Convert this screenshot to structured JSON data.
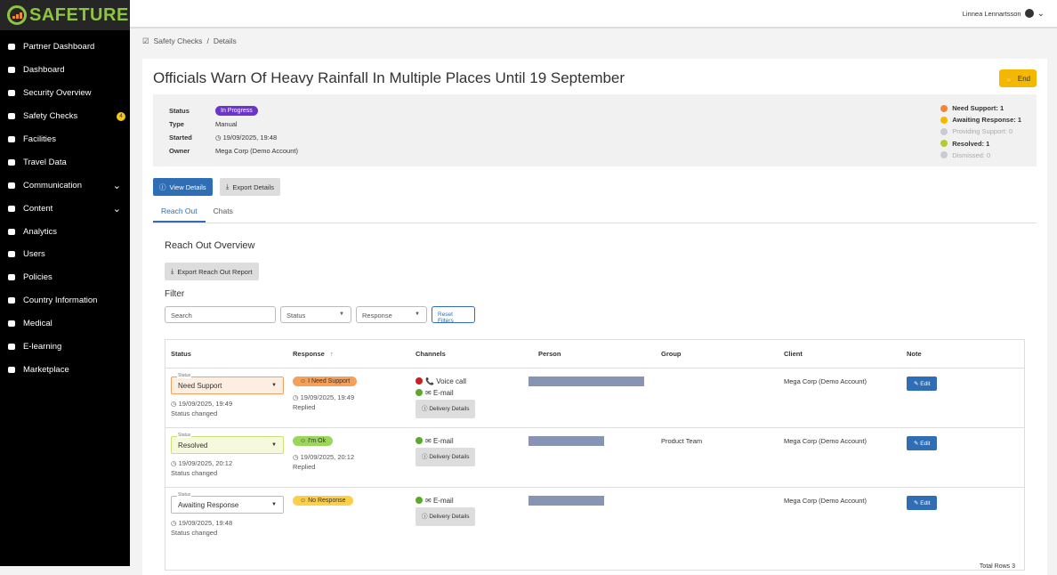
{
  "brand": "SAFETURE",
  "sidebar": {
    "items": [
      {
        "label": "Partner Dashboard",
        "icon": "handshake-icon"
      },
      {
        "label": "Dashboard",
        "icon": "gauge-icon"
      },
      {
        "label": "Security Overview",
        "icon": "globe-icon"
      },
      {
        "label": "Safety Checks",
        "icon": "check-square-icon",
        "badge": "4"
      },
      {
        "label": "Facilities",
        "icon": "building-icon"
      },
      {
        "label": "Travel Data",
        "icon": "plane-icon"
      },
      {
        "label": "Communication",
        "icon": "megaphone-icon",
        "expandable": true
      },
      {
        "label": "Content",
        "icon": "pencil-icon",
        "expandable": true
      },
      {
        "label": "Analytics",
        "icon": "chart-icon"
      },
      {
        "label": "Users",
        "icon": "user-icon"
      },
      {
        "label": "Policies",
        "icon": "document-icon"
      },
      {
        "label": "Country Information",
        "icon": "flag-icon"
      },
      {
        "label": "Medical",
        "icon": "medkit-icon"
      },
      {
        "label": "E-learning",
        "icon": "graduation-cap-icon"
      },
      {
        "label": "Marketplace",
        "icon": "star-icon"
      }
    ]
  },
  "topbar": {
    "user": "Linnea Lennartsson"
  },
  "breadcrumb": {
    "parent": "Safety Checks",
    "sep": "/",
    "current": "Details"
  },
  "title": "Officials Warn Of Heavy Rainfall In Multiple Places Until 19 September",
  "end_label": "End",
  "info": {
    "status_k": "Status",
    "status": "In Progress",
    "type_k": "Type",
    "type": "Manual",
    "started_k": "Started",
    "started": "19/09/2025, 19:48",
    "owner_k": "Owner",
    "owner": "Mega Corp (Demo Account)"
  },
  "legend": [
    {
      "label": "Need Support: 1",
      "color": "#f0883a"
    },
    {
      "label": "Awaiting Response: 1",
      "color": "#f5b800"
    },
    {
      "label": "Providing Support: 0",
      "color": "#c8ccd2"
    },
    {
      "label": "Resolved: 1",
      "color": "#b5cc2e"
    },
    {
      "label": "Dismissed: 0",
      "color": "#c8ccd2"
    }
  ],
  "buttons": {
    "view": "View Details",
    "export": "Export Details",
    "export_reach": "Export Reach Out Report",
    "reset": "Reset Filters"
  },
  "tabs": [
    "Reach Out",
    "Chats"
  ],
  "overview_title": "Reach Out Overview",
  "filter_title": "Filter",
  "filters": {
    "search_placeholder": "Search",
    "status": "Status",
    "response": "Response"
  },
  "columns": [
    "Status",
    "Response",
    "Channels",
    "Person",
    "Group",
    "Client",
    "Note"
  ],
  "sort_icon": "↑",
  "rows": [
    {
      "status": "Need Support",
      "status_label": "Status",
      "status_time": "19/09/2025, 19:49",
      "status_note": "Status changed",
      "response": "I Need Support",
      "resp_color": "#f5a15a",
      "resp_time": "19/09/2025, 19:49",
      "resp_note": "Replied",
      "channels": [
        {
          "name": "Voice call",
          "ok": false,
          "icon": "phone-icon"
        },
        {
          "name": "E-mail",
          "ok": true,
          "icon": "envelope-icon"
        }
      ],
      "group": "",
      "client": "Mega Corp (Demo Account)",
      "sel_bg": "#fdeee2",
      "sel_border": "#f0a060"
    },
    {
      "status": "Resolved",
      "status_label": "Status",
      "status_time": "19/09/2025, 20:12",
      "status_note": "Status changed",
      "response": "I'm Ok",
      "resp_color": "#9bd65a",
      "resp_time": "19/09/2025, 20:12",
      "resp_note": "Replied",
      "channels": [
        {
          "name": "E-mail",
          "ok": true,
          "icon": "envelope-icon"
        }
      ],
      "group": "Product Team",
      "client": "Mega Corp (Demo Account)",
      "sel_bg": "#f6f9dc",
      "sel_border": "#cfe07a"
    },
    {
      "status": "Awaiting Response",
      "status_label": "Status",
      "status_time": "19/09/2025, 19:48",
      "status_note": "Status changed",
      "response": "No Response",
      "resp_color": "#fbcf4a",
      "resp_time": "",
      "resp_note": "",
      "channels": [
        {
          "name": "E-mail",
          "ok": true,
          "icon": "envelope-icon"
        }
      ],
      "group": "",
      "client": "Mega Corp (Demo Account)",
      "sel_bg": "#fff",
      "sel_border": "#bbb"
    }
  ],
  "delivery_label": "Delivery Details",
  "edit_label": "Edit",
  "total_rows": "Total Rows 3"
}
